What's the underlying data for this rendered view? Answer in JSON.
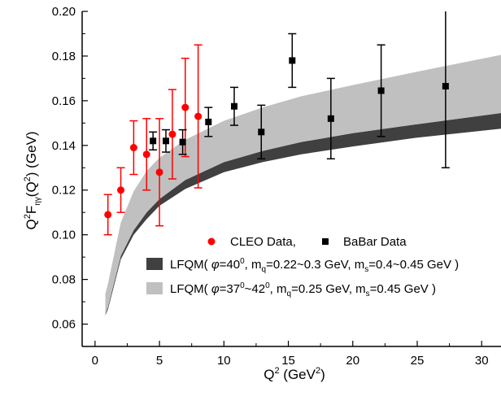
{
  "chart_data": {
    "type": "scatter",
    "xlim": [
      -1,
      31.5
    ],
    "ylim": [
      0.05,
      0.2
    ],
    "x_ticks": [
      0,
      5,
      10,
      15,
      20,
      25,
      30
    ],
    "x_tick_labels": [
      "0",
      "5",
      "10",
      "15",
      "20",
      "25",
      "30"
    ],
    "y_ticks": [
      0.06,
      0.08,
      0.1,
      0.12,
      0.14,
      0.16,
      0.18,
      0.2
    ],
    "y_tick_labels": [
      "0.06",
      "0.08",
      "0.10",
      "0.12",
      "0.14",
      "0.16",
      "0.18",
      "0.20"
    ],
    "xlabel": {
      "base": "Q",
      "sup": "2",
      "rest": " (GeV",
      "sup2": "2",
      "end": ")"
    },
    "ylabel": {
      "p1": "Q",
      "sup1": "2",
      "p2": "F",
      "sub": "ηγ",
      "p3": "(Q",
      "sup2": "2",
      "p4": ") (GeV)"
    },
    "grid": false,
    "legend_position": "lower-right",
    "colors": {
      "cleo": "#ff0000",
      "babar": "#000000",
      "band_dark": "#404040",
      "band_light": "#c0c0c0"
    },
    "series": [
      {
        "name": "CLEO Data,",
        "marker": "circle",
        "points": [
          {
            "x": 1.0,
            "y": 0.109,
            "lo": 0.1,
            "hi": 0.118
          },
          {
            "x": 2.0,
            "y": 0.12,
            "lo": 0.11,
            "hi": 0.13
          },
          {
            "x": 3.0,
            "y": 0.139,
            "lo": 0.127,
            "hi": 0.151
          },
          {
            "x": 4.0,
            "y": 0.136,
            "lo": 0.12,
            "hi": 0.152
          },
          {
            "x": 5.0,
            "y": 0.128,
            "lo": 0.104,
            "hi": 0.152
          },
          {
            "x": 6.0,
            "y": 0.145,
            "lo": 0.125,
            "hi": 0.165
          },
          {
            "x": 7.0,
            "y": 0.157,
            "lo": 0.135,
            "hi": 0.179
          },
          {
            "x": 8.0,
            "y": 0.153,
            "lo": 0.121,
            "hi": 0.185
          }
        ]
      },
      {
        "name": "BaBar Data",
        "marker": "square",
        "points": [
          {
            "x": 4.5,
            "y": 0.142,
            "lo": 0.138,
            "hi": 0.146
          },
          {
            "x": 5.5,
            "y": 0.142,
            "lo": 0.137,
            "hi": 0.147
          },
          {
            "x": 6.8,
            "y": 0.1415,
            "lo": 0.136,
            "hi": 0.147
          },
          {
            "x": 8.8,
            "y": 0.1505,
            "lo": 0.144,
            "hi": 0.157
          },
          {
            "x": 10.8,
            "y": 0.1575,
            "lo": 0.149,
            "hi": 0.166
          },
          {
            "x": 12.9,
            "y": 0.146,
            "lo": 0.134,
            "hi": 0.158
          },
          {
            "x": 15.3,
            "y": 0.178,
            "lo": 0.166,
            "hi": 0.19
          },
          {
            "x": 18.3,
            "y": 0.152,
            "lo": 0.134,
            "hi": 0.17
          },
          {
            "x": 22.2,
            "y": 0.1645,
            "lo": 0.144,
            "hi": 0.185
          },
          {
            "x": 27.2,
            "y": 0.1665,
            "lo": 0.13,
            "hi": 0.203
          }
        ]
      }
    ],
    "bands": [
      {
        "name": "LFQM(",
        "label_parts": [
          {
            "t": "LFQM( "
          },
          {
            "t": "φ",
            "i": true
          },
          {
            "t": "=40"
          },
          {
            "t": "0",
            "sup": true
          },
          {
            "t": ", m"
          },
          {
            "t": "q",
            "sub": true
          },
          {
            "t": "=0.22~0.3 GeV, m"
          },
          {
            "t": "s",
            "sub": true
          },
          {
            "t": "=0.4~0.45 GeV )"
          }
        ],
        "x": [
          0.8,
          1,
          2,
          3,
          4,
          5,
          7,
          10,
          13,
          16,
          20,
          25,
          31.5
        ],
        "lower": [
          0.064,
          0.0665,
          0.089,
          0.1,
          0.107,
          0.113,
          0.1205,
          0.128,
          0.1325,
          0.136,
          0.1395,
          0.1435,
          0.1475
        ],
        "upper": [
          0.0645,
          0.0675,
          0.0905,
          0.102,
          0.11,
          0.116,
          0.1245,
          0.1325,
          0.1375,
          0.1415,
          0.1455,
          0.1495,
          0.1545
        ]
      },
      {
        "name": "LFQM(",
        "label_parts": [
          {
            "t": "LFQM( "
          },
          {
            "t": "φ",
            "i": true
          },
          {
            "t": "=37"
          },
          {
            "t": "0",
            "sup": true
          },
          {
            "t": "~42"
          },
          {
            "t": "0",
            "sup": true
          },
          {
            "t": ", m"
          },
          {
            "t": "q",
            "sub": true
          },
          {
            "t": "=0.25 GeV, m"
          },
          {
            "t": "s",
            "sub": true
          },
          {
            "t": "=0.45 GeV )"
          }
        ],
        "x": [
          0.8,
          1,
          2,
          3,
          4,
          5,
          7,
          10,
          13,
          16,
          20,
          25,
          31.5
        ],
        "lower": [
          0.0645,
          0.0675,
          0.0905,
          0.102,
          0.11,
          0.116,
          0.1245,
          0.1325,
          0.1375,
          0.1415,
          0.1455,
          0.1495,
          0.1545
        ],
        "upper": [
          0.0735,
          0.078,
          0.1055,
          0.1195,
          0.1285,
          0.1345,
          0.1425,
          0.151,
          0.157,
          0.162,
          0.167,
          0.173,
          0.1805
        ]
      }
    ]
  }
}
